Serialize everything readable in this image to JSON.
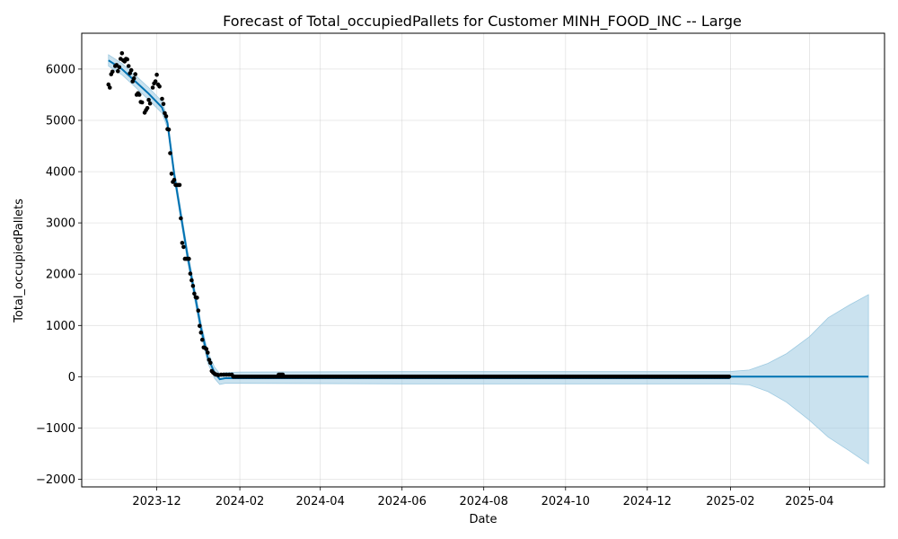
{
  "chart_data": {
    "type": "line",
    "title": "Forecast of Total_occupiedPallets for Customer MINH_FOOD_INC -- Large",
    "xlabel": "Date",
    "ylabel": "Total_occupiedPallets",
    "xlim": [
      "2023-10-06",
      "2025-05-27"
    ],
    "ylim": [
      -2150,
      6700
    ],
    "grid": true,
    "x_ticks": [
      "2023-12-01",
      "2024-02-01",
      "2024-04-01",
      "2024-06-01",
      "2024-08-01",
      "2024-10-01",
      "2024-12-01",
      "2025-02-01",
      "2025-04-01"
    ],
    "x_tick_labels": [
      "2023-12",
      "2024-02",
      "2024-04",
      "2024-06",
      "2024-08",
      "2024-10",
      "2024-12",
      "2025-02",
      "2025-04"
    ],
    "y_ticks": [
      -2000,
      -1000,
      0,
      1000,
      2000,
      3000,
      4000,
      5000,
      6000
    ],
    "y_tick_labels": [
      "−2000",
      "−1000",
      "0",
      "1000",
      "2000",
      "3000",
      "4000",
      "5000",
      "6000"
    ],
    "colors": {
      "observed": "#000000",
      "forecast": "#0072b2",
      "interval": "#9ecae1"
    },
    "series": [
      {
        "role": "observed",
        "style": "points",
        "points": [
          [
            "2023-10-26",
            5700
          ],
          [
            "2023-10-27",
            5640
          ],
          [
            "2023-10-28",
            5900
          ],
          [
            "2023-10-29",
            5950
          ],
          [
            "2023-10-31",
            6060
          ],
          [
            "2023-11-01",
            6080
          ],
          [
            "2023-11-02",
            5960
          ],
          [
            "2023-11-03",
            6040
          ],
          [
            "2023-11-04",
            6200
          ],
          [
            "2023-11-05",
            6310
          ],
          [
            "2023-11-06",
            6170
          ],
          [
            "2023-11-07",
            6150
          ],
          [
            "2023-11-08",
            6200
          ],
          [
            "2023-11-09",
            6190
          ],
          [
            "2023-11-10",
            6060
          ],
          [
            "2023-11-11",
            5920
          ],
          [
            "2023-11-12",
            5980
          ],
          [
            "2023-11-13",
            5760
          ],
          [
            "2023-11-14",
            5820
          ],
          [
            "2023-11-15",
            5900
          ],
          [
            "2023-11-16",
            5500
          ],
          [
            "2023-11-17",
            5530
          ],
          [
            "2023-11-18",
            5500
          ],
          [
            "2023-11-19",
            5360
          ],
          [
            "2023-11-20",
            5350
          ],
          [
            "2023-11-22",
            5150
          ],
          [
            "2023-11-23",
            5200
          ],
          [
            "2023-11-24",
            5240
          ],
          [
            "2023-11-25",
            5400
          ],
          [
            "2023-11-26",
            5330
          ],
          [
            "2023-11-28",
            5640
          ],
          [
            "2023-11-29",
            5720
          ],
          [
            "2023-11-30",
            5760
          ],
          [
            "2023-12-01",
            5890
          ],
          [
            "2023-12-02",
            5700
          ],
          [
            "2023-12-03",
            5660
          ],
          [
            "2023-12-05",
            5420
          ],
          [
            "2023-12-06",
            5320
          ],
          [
            "2023-12-07",
            5140
          ],
          [
            "2023-12-08",
            5080
          ],
          [
            "2023-12-09",
            4830
          ],
          [
            "2023-12-10",
            4820
          ],
          [
            "2023-12-11",
            4360
          ],
          [
            "2023-12-12",
            3960
          ],
          [
            "2023-12-13",
            3800
          ],
          [
            "2023-12-14",
            3840
          ],
          [
            "2023-12-15",
            3740
          ],
          [
            "2023-12-16",
            3740
          ],
          [
            "2023-12-17",
            3740
          ],
          [
            "2023-12-18",
            3740
          ],
          [
            "2023-12-19",
            3090
          ],
          [
            "2023-12-20",
            2610
          ],
          [
            "2023-12-21",
            2530
          ],
          [
            "2023-12-22",
            2300
          ],
          [
            "2023-12-23",
            2300
          ],
          [
            "2023-12-24",
            2300
          ],
          [
            "2023-12-25",
            2300
          ],
          [
            "2023-12-26",
            2010
          ],
          [
            "2023-12-27",
            1880
          ],
          [
            "2023-12-28",
            1770
          ],
          [
            "2023-12-29",
            1620
          ],
          [
            "2023-12-30",
            1550
          ],
          [
            "2023-12-31",
            1540
          ],
          [
            "2024-01-01",
            1290
          ],
          [
            "2024-01-02",
            990
          ],
          [
            "2024-01-03",
            860
          ],
          [
            "2024-01-04",
            720
          ],
          [
            "2024-01-05",
            570
          ],
          [
            "2024-01-06",
            560
          ],
          [
            "2024-01-07",
            540
          ],
          [
            "2024-01-08",
            470
          ],
          [
            "2024-01-09",
            330
          ],
          [
            "2024-01-10",
            270
          ],
          [
            "2024-01-11",
            110
          ],
          [
            "2024-01-12",
            80
          ],
          [
            "2024-01-13",
            60
          ],
          [
            "2024-01-14",
            40
          ],
          [
            "2024-01-15",
            40
          ],
          [
            "2024-01-16",
            30
          ],
          [
            "2024-01-18",
            40
          ],
          [
            "2024-01-20",
            40
          ],
          [
            "2024-01-22",
            40
          ],
          [
            "2024-01-24",
            40
          ],
          [
            "2024-01-26",
            40
          ],
          [
            "2024-03-01",
            40
          ],
          [
            "2024-03-02",
            40
          ],
          [
            "2024-03-03",
            40
          ],
          [
            "2024-03-04",
            40
          ]
        ],
        "flat_span": {
          "from": "2024-01-27",
          "to": "2025-01-31",
          "value": 0,
          "frequency": "daily"
        }
      },
      {
        "role": "forecast",
        "style": "line",
        "points": [
          [
            "2023-10-26",
            6170
          ],
          [
            "2023-11-05",
            6000
          ],
          [
            "2023-11-15",
            5760
          ],
          [
            "2023-11-25",
            5520
          ],
          [
            "2023-12-05",
            5250
          ],
          [
            "2023-12-09",
            4950
          ],
          [
            "2023-12-14",
            3950
          ],
          [
            "2023-12-19",
            3150
          ],
          [
            "2023-12-24",
            2350
          ],
          [
            "2023-12-29",
            1650
          ],
          [
            "2024-01-03",
            950
          ],
          [
            "2024-01-08",
            380
          ],
          [
            "2024-01-13",
            80
          ],
          [
            "2024-01-17",
            -50
          ],
          [
            "2024-01-21",
            -30
          ],
          [
            "2024-02-01",
            -30
          ],
          [
            "2024-03-01",
            -30
          ],
          [
            "2025-01-31",
            -30
          ],
          [
            "2025-02-01",
            0
          ],
          [
            "2025-05-15",
            0
          ]
        ]
      },
      {
        "role": "interval",
        "style": "band",
        "upper": [
          [
            "2023-10-26",
            6280
          ],
          [
            "2023-11-05",
            6110
          ],
          [
            "2023-11-15",
            5880
          ],
          [
            "2023-11-25",
            5640
          ],
          [
            "2023-12-05",
            5370
          ],
          [
            "2023-12-09",
            5050
          ],
          [
            "2023-12-14",
            4050
          ],
          [
            "2023-12-19",
            3260
          ],
          [
            "2023-12-24",
            2460
          ],
          [
            "2023-12-29",
            1760
          ],
          [
            "2024-01-03",
            1060
          ],
          [
            "2024-01-08",
            490
          ],
          [
            "2024-01-13",
            190
          ],
          [
            "2024-01-17",
            60
          ],
          [
            "2024-01-21",
            80
          ],
          [
            "2024-02-01",
            90
          ],
          [
            "2024-06-01",
            100
          ],
          [
            "2024-10-01",
            100
          ],
          [
            "2025-01-31",
            100
          ],
          [
            "2025-02-15",
            130
          ],
          [
            "2025-03-01",
            260
          ],
          [
            "2025-03-15",
            450
          ],
          [
            "2025-04-01",
            780
          ],
          [
            "2025-04-15",
            1150
          ],
          [
            "2025-05-01",
            1400
          ],
          [
            "2025-05-15",
            1600
          ]
        ],
        "lower": [
          [
            "2023-10-26",
            6060
          ],
          [
            "2023-11-05",
            5890
          ],
          [
            "2023-11-15",
            5650
          ],
          [
            "2023-11-25",
            5400
          ],
          [
            "2023-12-05",
            5140
          ],
          [
            "2023-12-09",
            4850
          ],
          [
            "2023-12-14",
            3850
          ],
          [
            "2023-12-19",
            3050
          ],
          [
            "2023-12-24",
            2240
          ],
          [
            "2023-12-29",
            1540
          ],
          [
            "2024-01-03",
            840
          ],
          [
            "2024-01-08",
            270
          ],
          [
            "2024-01-13",
            -30
          ],
          [
            "2024-01-17",
            -150
          ],
          [
            "2024-01-21",
            -130
          ],
          [
            "2024-02-01",
            -130
          ],
          [
            "2024-06-01",
            -140
          ],
          [
            "2024-10-01",
            -140
          ],
          [
            "2025-01-31",
            -140
          ],
          [
            "2025-02-15",
            -160
          ],
          [
            "2025-03-01",
            -290
          ],
          [
            "2025-03-15",
            -500
          ],
          [
            "2025-04-01",
            -850
          ],
          [
            "2025-04-15",
            -1180
          ],
          [
            "2025-05-01",
            -1450
          ],
          [
            "2025-05-15",
            -1700
          ]
        ]
      }
    ]
  }
}
